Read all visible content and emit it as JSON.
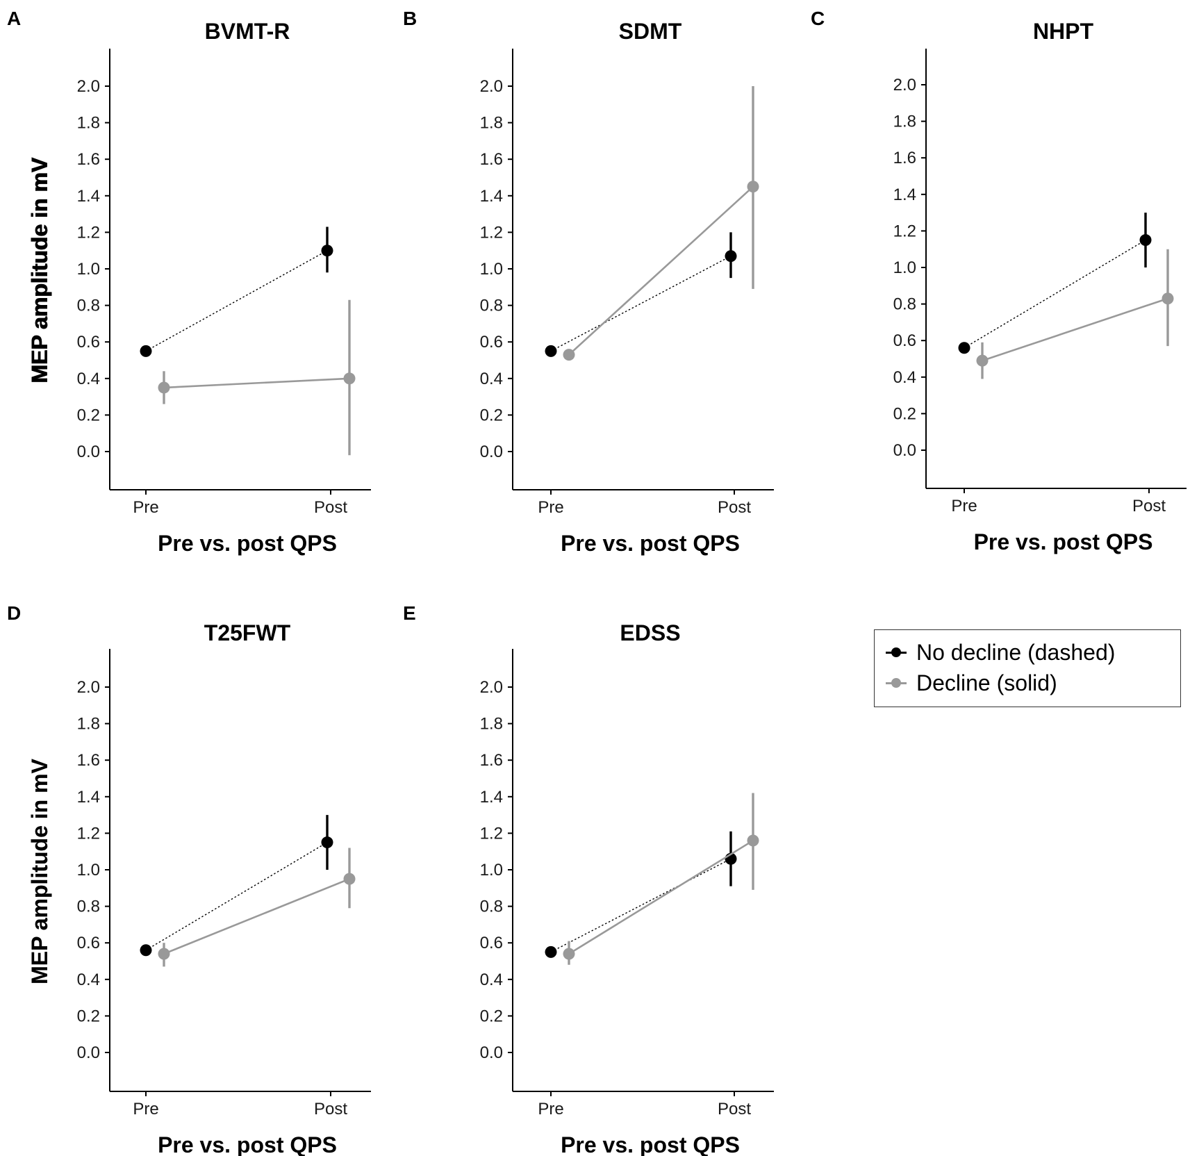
{
  "colors": {
    "no_decline": "#000000",
    "decline": "#999999",
    "axis": "#000000"
  },
  "legend": {
    "items": [
      {
        "label": "No decline (dashed)",
        "color": "#000000"
      },
      {
        "label": "Decline (solid)",
        "color": "#999999"
      }
    ]
  },
  "chart_data": [
    {
      "type": "line",
      "panel": "A",
      "title": "BVMT-R",
      "xlabel": "Pre vs. post QPS",
      "ylabel": "MEP amplitude in mV",
      "categories": [
        "Pre",
        "Post"
      ],
      "ylim": [
        -0.2,
        2.2
      ],
      "yticks": [
        "0.0",
        "0.2",
        "0.4",
        "0.6",
        "0.8",
        "1.0",
        "1.2",
        "1.4",
        "1.6",
        "1.8",
        "2.0"
      ],
      "series": [
        {
          "name": "No decline (dashed)",
          "values": [
            0.55,
            1.1
          ],
          "err_low": [
            0.55,
            0.98
          ],
          "err_high": [
            0.55,
            1.23
          ]
        },
        {
          "name": "Decline (solid)",
          "values": [
            0.35,
            0.4
          ],
          "err_low": [
            0.26,
            -0.02
          ],
          "err_high": [
            0.44,
            0.83
          ]
        }
      ]
    },
    {
      "type": "line",
      "panel": "B",
      "title": "SDMT",
      "xlabel": "Pre vs. post QPS",
      "ylabel": "MEP amplitude in mV",
      "categories": [
        "Pre",
        "Post"
      ],
      "ylim": [
        -0.2,
        2.2
      ],
      "yticks": [
        "0.0",
        "0.2",
        "0.4",
        "0.6",
        "0.8",
        "1.0",
        "1.2",
        "1.4",
        "1.6",
        "1.8",
        "2.0"
      ],
      "series": [
        {
          "name": "No decline (dashed)",
          "values": [
            0.55,
            1.07
          ],
          "err_low": [
            0.55,
            0.95
          ],
          "err_high": [
            0.55,
            1.2
          ]
        },
        {
          "name": "Decline (solid)",
          "values": [
            0.53,
            1.45
          ],
          "err_low": [
            0.51,
            0.89
          ],
          "err_high": [
            0.55,
            2.0
          ]
        }
      ]
    },
    {
      "type": "line",
      "panel": "C",
      "title": "NHPT",
      "xlabel": "Pre vs. post QPS",
      "ylabel": "MEP amplitude in mV",
      "categories": [
        "Pre",
        "Post"
      ],
      "ylim": [
        -0.2,
        2.2
      ],
      "yticks": [
        "0.0",
        "0.2",
        "0.4",
        "0.6",
        "0.8",
        "1.0",
        "1.2",
        "1.4",
        "1.6",
        "1.8",
        "2.0"
      ],
      "series": [
        {
          "name": "No decline (dashed)",
          "values": [
            0.56,
            1.15
          ],
          "err_low": [
            0.55,
            1.0
          ],
          "err_high": [
            0.57,
            1.3
          ]
        },
        {
          "name": "Decline (solid)",
          "values": [
            0.49,
            0.83
          ],
          "err_low": [
            0.39,
            0.57
          ],
          "err_high": [
            0.59,
            1.1
          ]
        }
      ]
    },
    {
      "type": "line",
      "panel": "D",
      "title": "T25FWT",
      "xlabel": "Pre vs. post QPS",
      "ylabel": "MEP amplitude in mV",
      "categories": [
        "Pre",
        "Post"
      ],
      "ylim": [
        -0.2,
        2.2
      ],
      "yticks": [
        "0.0",
        "0.2",
        "0.4",
        "0.6",
        "0.8",
        "1.0",
        "1.2",
        "1.4",
        "1.6",
        "1.8",
        "2.0"
      ],
      "series": [
        {
          "name": "No decline (dashed)",
          "values": [
            0.56,
            1.15
          ],
          "err_low": [
            0.54,
            1.0
          ],
          "err_high": [
            0.57,
            1.3
          ]
        },
        {
          "name": "Decline (solid)",
          "values": [
            0.54,
            0.95
          ],
          "err_low": [
            0.47,
            0.79
          ],
          "err_high": [
            0.6,
            1.12
          ]
        }
      ]
    },
    {
      "type": "line",
      "panel": "E",
      "title": "EDSS",
      "xlabel": "Pre vs. post QPS",
      "ylabel": "MEP amplitude in mV",
      "categories": [
        "Pre",
        "Post"
      ],
      "ylim": [
        -0.2,
        2.2
      ],
      "yticks": [
        "0.0",
        "0.2",
        "0.4",
        "0.6",
        "0.8",
        "1.0",
        "1.2",
        "1.4",
        "1.6",
        "1.8",
        "2.0"
      ],
      "series": [
        {
          "name": "No decline (dashed)",
          "values": [
            0.55,
            1.06
          ],
          "err_low": [
            0.54,
            0.91
          ],
          "err_high": [
            0.56,
            1.21
          ]
        },
        {
          "name": "Decline (solid)",
          "values": [
            0.54,
            1.16
          ],
          "err_low": [
            0.48,
            0.89
          ],
          "err_high": [
            0.61,
            1.42
          ]
        }
      ]
    }
  ]
}
